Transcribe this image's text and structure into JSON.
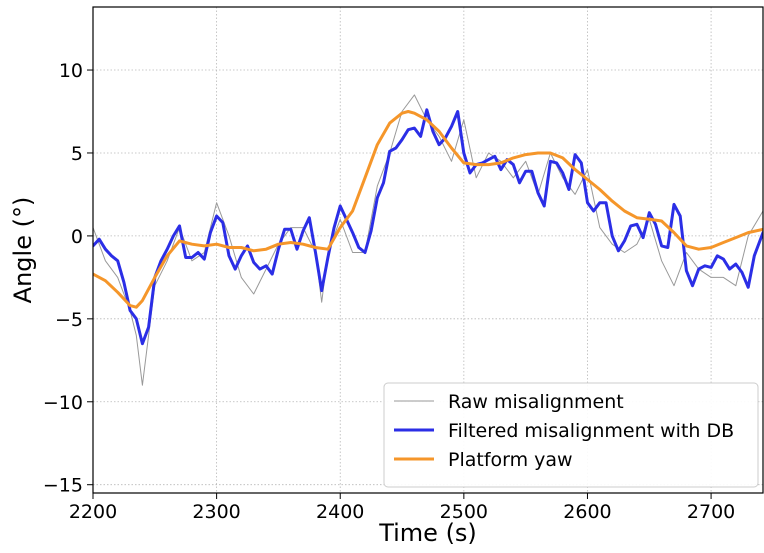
{
  "chart_data": {
    "type": "line",
    "title": "",
    "xlabel": "Time (s)",
    "ylabel": "Angle (°)",
    "xlim": [
      2200,
      2742
    ],
    "ylim": [
      -15.5,
      13.8
    ],
    "xticks": [
      2200,
      2300,
      2400,
      2500,
      2600,
      2700
    ],
    "yticks": [
      -15,
      -10,
      -5,
      0,
      5,
      10
    ],
    "ytick_labels": [
      "−15",
      "−10",
      "−5",
      "0",
      "5",
      "10"
    ],
    "grid": true,
    "legend_position": "bottom-right",
    "series": [
      {
        "name": "Raw misalignment",
        "color": "#999999",
        "x": [
          2200,
          2210,
          2220,
          2230,
          2235,
          2240,
          2245,
          2250,
          2260,
          2270,
          2280,
          2290,
          2300,
          2310,
          2320,
          2330,
          2340,
          2350,
          2360,
          2370,
          2380,
          2385,
          2390,
          2400,
          2410,
          2420,
          2430,
          2440,
          2450,
          2460,
          2470,
          2480,
          2490,
          2500,
          2510,
          2520,
          2530,
          2540,
          2550,
          2560,
          2570,
          2580,
          2590,
          2600,
          2610,
          2620,
          2630,
          2640,
          2650,
          2660,
          2670,
          2680,
          2690,
          2700,
          2710,
          2720,
          2730,
          2742
        ],
        "y": [
          0.5,
          -1.5,
          -2.5,
          -4.5,
          -6,
          -9,
          -6,
          -3,
          -1.5,
          0.5,
          -1.5,
          -1,
          2,
          0,
          -2.5,
          -3.5,
          -2,
          -0.5,
          0.5,
          0.5,
          -1,
          -4,
          -1,
          1,
          -1,
          -1,
          3,
          5,
          7.5,
          8.5,
          7,
          6,
          4.5,
          7,
          3.5,
          5,
          4.5,
          3.5,
          4.5,
          2.5,
          5,
          3.5,
          2.5,
          4,
          0.5,
          -0.5,
          -1,
          -0.5,
          1,
          -1.5,
          -3,
          -1,
          -2,
          -2.5,
          -2.5,
          -3,
          0,
          1.5
        ]
      },
      {
        "name": "Filtered misalignment with DB",
        "color": "#2b2ee6",
        "x": [
          2200,
          2205,
          2210,
          2215,
          2220,
          2225,
          2230,
          2235,
          2240,
          2245,
          2250,
          2255,
          2260,
          2265,
          2270,
          2275,
          2280,
          2285,
          2290,
          2295,
          2300,
          2305,
          2310,
          2315,
          2320,
          2325,
          2330,
          2335,
          2340,
          2345,
          2350,
          2355,
          2360,
          2365,
          2370,
          2375,
          2380,
          2385,
          2390,
          2395,
          2400,
          2405,
          2410,
          2415,
          2420,
          2425,
          2430,
          2435,
          2440,
          2445,
          2450,
          2455,
          2460,
          2465,
          2470,
          2475,
          2480,
          2485,
          2490,
          2495,
          2500,
          2505,
          2510,
          2515,
          2520,
          2525,
          2530,
          2535,
          2540,
          2545,
          2550,
          2555,
          2560,
          2565,
          2570,
          2575,
          2580,
          2585,
          2590,
          2595,
          2600,
          2605,
          2610,
          2615,
          2620,
          2625,
          2630,
          2635,
          2640,
          2645,
          2650,
          2655,
          2660,
          2665,
          2670,
          2675,
          2680,
          2685,
          2690,
          2695,
          2700,
          2705,
          2710,
          2715,
          2720,
          2725,
          2730,
          2735,
          2742
        ],
        "y": [
          -0.6,
          -0.2,
          -0.8,
          -1.2,
          -1.5,
          -2.8,
          -4.5,
          -5.0,
          -6.5,
          -5.5,
          -2.5,
          -1.5,
          -0.8,
          0.0,
          0.6,
          -1.3,
          -1.3,
          -1.0,
          -1.4,
          0.2,
          1.2,
          0.8,
          -1.2,
          -2.0,
          -1.2,
          -0.6,
          -1.6,
          -2.0,
          -1.8,
          -2.3,
          -0.8,
          0.4,
          0.4,
          -0.8,
          0.3,
          1.1,
          -1.0,
          -3.3,
          -1.3,
          0.5,
          1.8,
          1.0,
          0.2,
          -0.7,
          -1.0,
          0.3,
          2.3,
          3.2,
          5.1,
          5.3,
          5.8,
          6.4,
          6.5,
          6.0,
          7.6,
          6.3,
          5.5,
          5.9,
          6.6,
          7.5,
          5.0,
          3.8,
          4.3,
          4.4,
          4.6,
          4.8,
          4.0,
          4.6,
          4.3,
          3.2,
          3.9,
          3.9,
          2.6,
          1.8,
          4.5,
          4.4,
          3.8,
          2.8,
          4.9,
          4.4,
          2.0,
          1.5,
          2.0,
          2.0,
          0.0,
          -0.9,
          -0.3,
          0.6,
          0.7,
          -0.1,
          1.4,
          0.7,
          -0.6,
          -0.7,
          1.9,
          1.2,
          -2.1,
          -3.0,
          -2.0,
          -1.8,
          -1.9,
          -1.2,
          -1.4,
          -2.0,
          -1.7,
          -2.2,
          -3.1,
          -1.2,
          0.2
        ]
      },
      {
        "name": "Platform yaw",
        "color": "#f5962a",
        "x": [
          2200,
          2210,
          2220,
          2230,
          2235,
          2240,
          2250,
          2260,
          2270,
          2280,
          2290,
          2300,
          2310,
          2320,
          2330,
          2340,
          2350,
          2360,
          2370,
          2380,
          2390,
          2400,
          2410,
          2420,
          2430,
          2440,
          2450,
          2455,
          2460,
          2470,
          2480,
          2490,
          2500,
          2510,
          2520,
          2530,
          2540,
          2550,
          2560,
          2570,
          2580,
          2590,
          2600,
          2610,
          2620,
          2630,
          2640,
          2650,
          2660,
          2670,
          2680,
          2690,
          2700,
          2710,
          2720,
          2730,
          2742
        ],
        "y": [
          -2.3,
          -2.7,
          -3.4,
          -4.2,
          -4.3,
          -3.9,
          -2.5,
          -1.2,
          -0.3,
          -0.5,
          -0.6,
          -0.5,
          -0.7,
          -0.7,
          -0.9,
          -0.8,
          -0.5,
          -0.4,
          -0.5,
          -0.7,
          -0.8,
          0.5,
          1.5,
          3.5,
          5.5,
          6.8,
          7.4,
          7.5,
          7.4,
          7.0,
          6.3,
          5.3,
          4.4,
          4.3,
          4.3,
          4.4,
          4.7,
          4.9,
          5.0,
          5.0,
          4.7,
          4.0,
          3.4,
          2.8,
          2.1,
          1.5,
          1.1,
          1.0,
          0.9,
          0.2,
          -0.6,
          -0.8,
          -0.7,
          -0.4,
          -0.1,
          0.2,
          0.4
        ]
      }
    ]
  }
}
